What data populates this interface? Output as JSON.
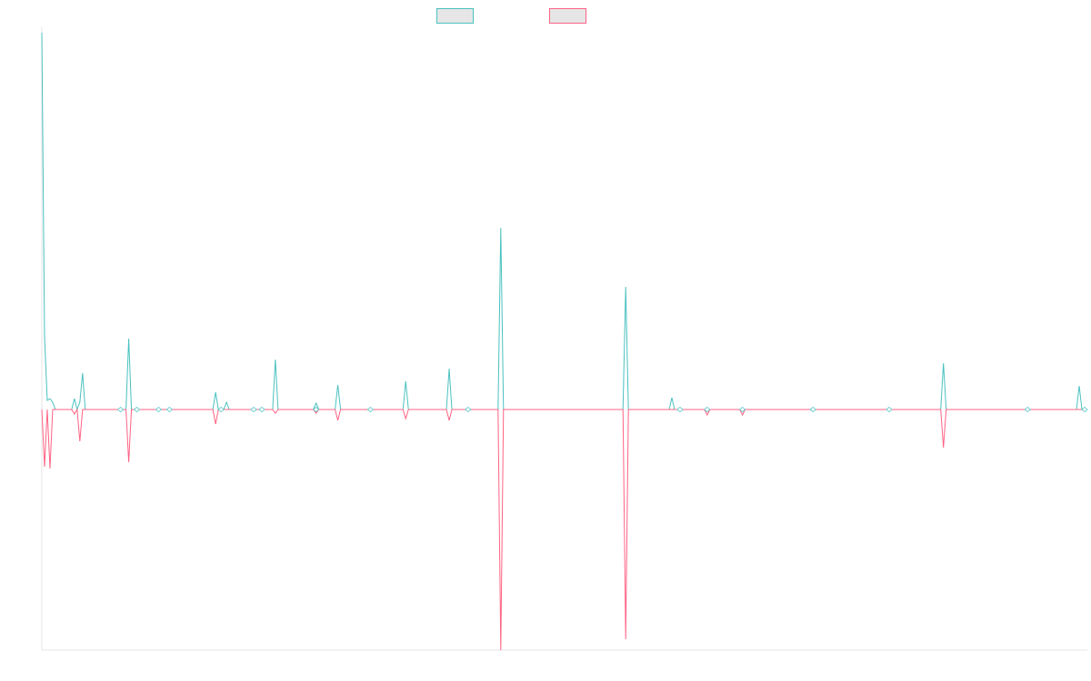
{
  "chart_data": {
    "type": "line",
    "title": "",
    "xlabel": "",
    "ylabel": "",
    "grid": false,
    "legend_position": "top-center",
    "ylim": [
      -265,
      415
    ],
    "y_zero": 0,
    "n_points": 386,
    "series": [
      {
        "key": "positive",
        "color": "#4bc0c0",
        "points": [
          [
            0,
            415
          ],
          [
            1,
            80
          ],
          [
            2,
            10
          ],
          [
            3,
            12
          ],
          [
            4,
            8
          ],
          [
            5,
            0
          ],
          [
            11,
            0
          ],
          [
            12,
            12
          ],
          [
            13,
            0
          ],
          [
            14,
            8
          ],
          [
            15,
            40
          ],
          [
            16,
            0
          ],
          [
            31,
            0
          ],
          [
            32,
            78
          ],
          [
            33,
            0
          ],
          [
            63,
            0
          ],
          [
            64,
            19
          ],
          [
            65,
            0
          ],
          [
            67,
            0
          ],
          [
            68,
            8
          ],
          [
            69,
            0
          ],
          [
            85,
            0
          ],
          [
            86,
            55
          ],
          [
            87,
            0
          ],
          [
            100,
            0
          ],
          [
            101,
            7
          ],
          [
            102,
            0
          ],
          [
            108,
            0
          ],
          [
            109,
            27
          ],
          [
            110,
            0
          ],
          [
            133,
            0
          ],
          [
            134,
            31
          ],
          [
            135,
            0
          ],
          [
            149,
            0
          ],
          [
            150,
            45
          ],
          [
            151,
            0
          ],
          [
            168,
            0
          ],
          [
            169,
            200
          ],
          [
            170,
            0
          ],
          [
            214,
            0
          ],
          [
            215,
            135
          ],
          [
            216,
            0
          ],
          [
            231,
            0
          ],
          [
            232,
            13
          ],
          [
            233,
            0
          ],
          [
            331,
            0
          ],
          [
            332,
            51
          ],
          [
            333,
            0
          ],
          [
            381,
            0
          ],
          [
            382,
            26
          ],
          [
            383,
            0
          ],
          [
            385,
            0
          ]
        ]
      },
      {
        "key": "negative",
        "color": "#ff6384",
        "points": [
          [
            0,
            0
          ],
          [
            1,
            -63
          ],
          [
            2,
            0
          ],
          [
            3,
            -65
          ],
          [
            4,
            0
          ],
          [
            11,
            0
          ],
          [
            12,
            -5
          ],
          [
            13,
            0
          ],
          [
            14,
            -35
          ],
          [
            15,
            0
          ],
          [
            31,
            0
          ],
          [
            32,
            -58
          ],
          [
            33,
            0
          ],
          [
            63,
            0
          ],
          [
            64,
            -16
          ],
          [
            65,
            0
          ],
          [
            85,
            0
          ],
          [
            86,
            -4
          ],
          [
            87,
            0
          ],
          [
            100,
            0
          ],
          [
            101,
            -4
          ],
          [
            102,
            0
          ],
          [
            108,
            0
          ],
          [
            109,
            -12
          ],
          [
            110,
            0
          ],
          [
            133,
            0
          ],
          [
            134,
            -10
          ],
          [
            135,
            0
          ],
          [
            149,
            0
          ],
          [
            150,
            -12
          ],
          [
            151,
            0
          ],
          [
            168,
            0
          ],
          [
            169,
            -265
          ],
          [
            170,
            0
          ],
          [
            214,
            0
          ],
          [
            215,
            -253
          ],
          [
            216,
            0
          ],
          [
            244,
            0
          ],
          [
            245,
            -6
          ],
          [
            246,
            0
          ],
          [
            257,
            0
          ],
          [
            258,
            -6
          ],
          [
            259,
            0
          ],
          [
            331,
            0
          ],
          [
            332,
            -42
          ],
          [
            333,
            0
          ],
          [
            385,
            0
          ]
        ]
      }
    ],
    "markers": [
      {
        "x": 29,
        "y": 0
      },
      {
        "x": 35,
        "y": 0
      },
      {
        "x": 43,
        "y": 0
      },
      {
        "x": 47,
        "y": 0
      },
      {
        "x": 66,
        "y": 0
      },
      {
        "x": 78,
        "y": 0
      },
      {
        "x": 81,
        "y": 0
      },
      {
        "x": 101,
        "y": 0
      },
      {
        "x": 121,
        "y": 0
      },
      {
        "x": 157,
        "y": 0
      },
      {
        "x": 235,
        "y": 0
      },
      {
        "x": 245,
        "y": 0
      },
      {
        "x": 258,
        "y": 0
      },
      {
        "x": 284,
        "y": 0
      },
      {
        "x": 312,
        "y": 0
      },
      {
        "x": 363,
        "y": 0
      },
      {
        "x": 384,
        "y": 0
      }
    ]
  }
}
